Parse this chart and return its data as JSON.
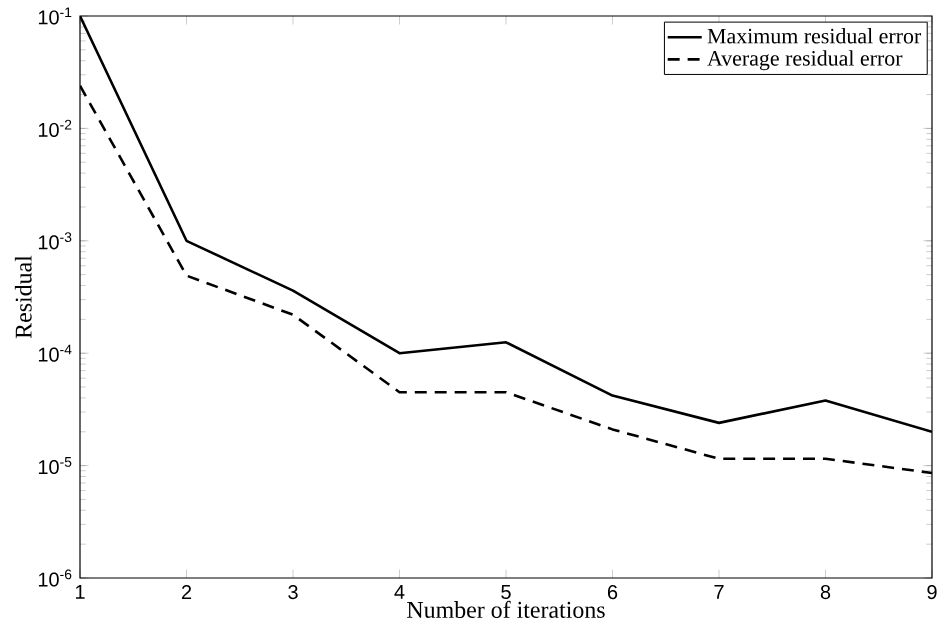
{
  "chart_data": {
    "type": "line",
    "xlabel": "Number of iterations",
    "ylabel": "Residual",
    "x": [
      1,
      2,
      3,
      4,
      5,
      6,
      7,
      8,
      9
    ],
    "series": [
      {
        "name": "Maximum residual error",
        "color": "#000000",
        "line_style": "solid",
        "values": [
          0.1,
          0.001,
          0.00036,
          0.0001,
          0.000125,
          4.2e-05,
          2.4e-05,
          3.8e-05,
          2e-05
        ]
      },
      {
        "name": "Average residual error",
        "color": "#000000",
        "line_style": "dashed",
        "values": [
          0.024,
          0.00049,
          0.00022,
          4.5e-05,
          4.5e-05,
          2.1e-05,
          1.15e-05,
          1.15e-05,
          8.6e-06
        ]
      }
    ],
    "xlim": [
      1,
      9
    ],
    "xticks": [
      1,
      2,
      3,
      4,
      5,
      6,
      7,
      8,
      9
    ],
    "ylim": [
      1e-06,
      0.1
    ],
    "yticks": [
      {
        "value": 1e-06,
        "label": "10$^{-6}$"
      },
      {
        "value": 1e-05,
        "label": "10$^{-5}$"
      },
      {
        "value": 0.0001,
        "label": "10$^{-4}$"
      },
      {
        "value": 0.001,
        "label": "10$^{-3}$"
      },
      {
        "value": 0.01,
        "label": "10$^{-2}$"
      },
      {
        "value": 0.1,
        "label": "10$^{-1}$"
      }
    ],
    "log": "y",
    "grid": false,
    "legend": "top right",
    "marker": "none"
  }
}
